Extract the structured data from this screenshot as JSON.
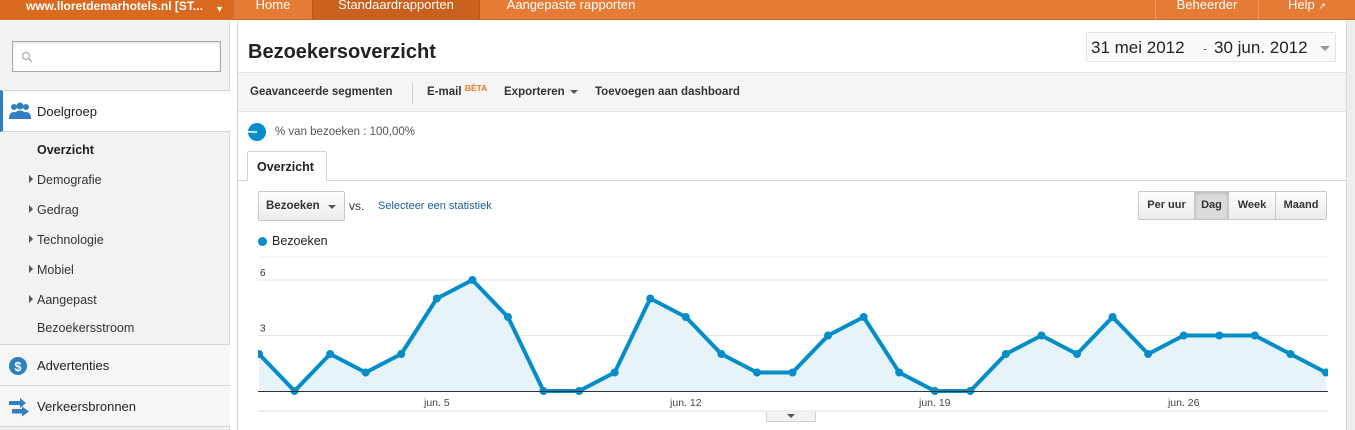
{
  "topbar": {
    "site_name": "www.lloretdemarhotels.nl [ST...",
    "nav": {
      "home": "Home",
      "standard_reports": "Standaardrapporten",
      "custom_reports": "Aangepaste rapporten",
      "admin": "Beheerder",
      "help": "Help"
    }
  },
  "sidebar": {
    "search": {
      "placeholder": ""
    },
    "doelgroep": "Doelgroep",
    "items": [
      {
        "label": "Overzicht",
        "active": true
      },
      {
        "label": "Demografie"
      },
      {
        "label": "Gedrag"
      },
      {
        "label": "Technologie"
      },
      {
        "label": "Mobiel"
      },
      {
        "label": "Aangepast"
      },
      {
        "label": "Bezoekersstroom"
      }
    ],
    "advertenties": "Advertenties",
    "verkeersbronnen": "Verkeersbronnen"
  },
  "header": {
    "title": "Bezoekersoverzicht",
    "date_start": "31 mei 2012",
    "date_sep": "-",
    "date_end": "30 jun. 2012"
  },
  "toolbar": {
    "advanced_segments": "Geavanceerde segmenten",
    "email": "E-mail",
    "beta": "BÈTA",
    "export": "Exporteren",
    "add_dashboard": "Toevoegen aan dashboard"
  },
  "segment": {
    "label": "% van bezoeken : 100,00%"
  },
  "tabs": {
    "overview": "Overzicht"
  },
  "controls": {
    "metric": "Bezoeken",
    "vs": "vs.",
    "select_stat": "Selecteer een statistiek",
    "periods": {
      "hour": "Per uur",
      "day": "Dag",
      "week": "Week",
      "month": "Maand"
    },
    "active_period": "Dag"
  },
  "colors": {
    "accent_orange": "#e57b35",
    "series": "#058dc7",
    "area": "#e6f4fa",
    "link": "#1a5e9e"
  },
  "chart_data": {
    "type": "area",
    "series": [
      {
        "name": "Bezoeken",
        "values": [
          2,
          0,
          2,
          1,
          2,
          5,
          6,
          4,
          0,
          0,
          1,
          5,
          4,
          2,
          1,
          1,
          3,
          4,
          1,
          0,
          0,
          2,
          3,
          2,
          4,
          2,
          3,
          3,
          3,
          2,
          1
        ]
      }
    ],
    "x": [
      "31 mei",
      "1 jun",
      "2 jun",
      "3 jun",
      "4 jun",
      "5 jun",
      "6 jun",
      "7 jun",
      "8 jun",
      "9 jun",
      "10 jun",
      "11 jun",
      "12 jun",
      "13 jun",
      "14 jun",
      "15 jun",
      "16 jun",
      "17 jun",
      "18 jun",
      "19 jun",
      "20 jun",
      "21 jun",
      "22 jun",
      "23 jun",
      "24 jun",
      "25 jun",
      "26 jun",
      "27 jun",
      "28 jun",
      "29 jun",
      "30 jun"
    ],
    "x_tick_labels": [
      "jun. 5",
      "jun. 12",
      "jun. 19",
      "jun. 26"
    ],
    "x_tick_indices": [
      5,
      12,
      19,
      26
    ],
    "y_tick_labels": [
      "3",
      "6"
    ],
    "y_ticks": [
      3,
      6
    ],
    "ylim": [
      0,
      6
    ],
    "grid": true,
    "legend": "top-left"
  }
}
